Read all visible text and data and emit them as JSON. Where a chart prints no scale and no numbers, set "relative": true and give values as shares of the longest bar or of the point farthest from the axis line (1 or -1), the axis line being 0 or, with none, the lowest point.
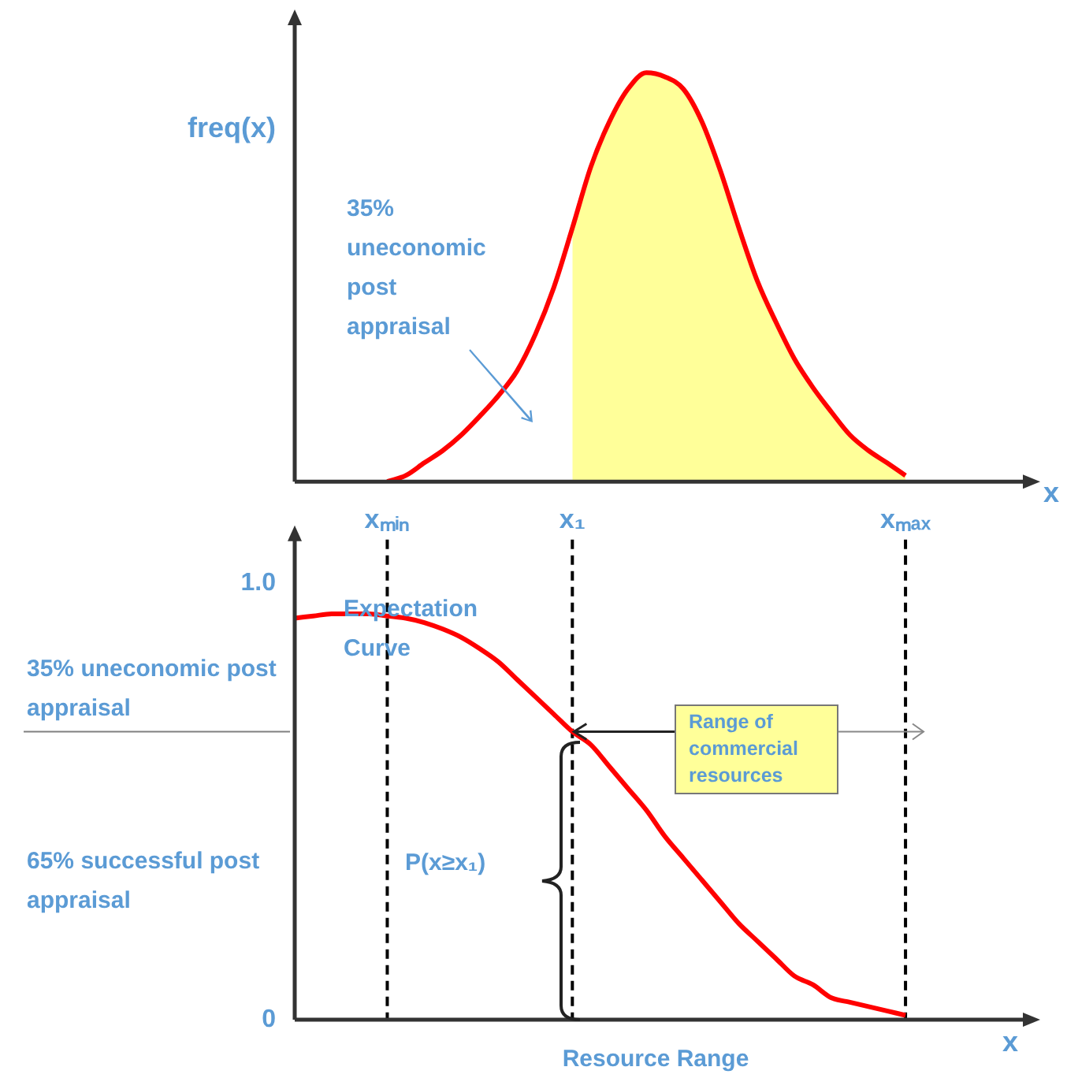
{
  "chart_data": [
    {
      "type": "line",
      "relative": true,
      "ylabel": "freq(x)",
      "xlabel": "x",
      "grid": false,
      "legend": false,
      "marker": "none",
      "line_style": "solid",
      "categories": [
        null,
        null,
        null,
        null,
        null,
        null,
        null,
        null,
        null,
        null,
        null,
        null,
        null,
        null,
        null,
        null,
        null,
        null,
        null,
        null,
        null,
        null,
        null,
        null,
        null,
        null,
        null,
        null,
        null,
        null,
        null,
        null,
        null,
        null,
        null,
        null,
        null,
        null,
        null,
        null
      ],
      "series": [
        {
          "color": "#ff0000",
          "values": [
            null,
            null,
            null,
            null,
            null,
            0,
            0.015,
            0.046,
            0.076,
            0.114,
            0.16,
            0.21,
            0.27,
            0.36,
            0.475,
            0.62,
            0.77,
            0.88,
            0.96,
            1,
            0.99,
            0.96,
            0.88,
            0.76,
            0.62,
            0.49,
            0.39,
            0.3,
            0.23,
            0.17,
            0.114,
            0.076,
            0.046,
            0.015,
            null,
            null,
            null,
            null,
            null,
            null
          ]
        },
        {
          "type": "area",
          "color": "#ffff99",
          "values": [
            null,
            null,
            null,
            null,
            null,
            null,
            null,
            null,
            null,
            null,
            null,
            null,
            null,
            null,
            null,
            0.62,
            0.77,
            0.88,
            0.96,
            1,
            0.99,
            0.96,
            0.88,
            0.76,
            0.62,
            0.49,
            0.39,
            0.3,
            0.23,
            0.17,
            0.114,
            0.076,
            0.046,
            0.015,
            null,
            null,
            null,
            null,
            null,
            null
          ]
        }
      ],
      "annotations": [
        "35% uneconomic post appraisal"
      ]
    },
    {
      "type": "line",
      "xlabel": "Resource Range",
      "grid": false,
      "legend": false,
      "marker": "none",
      "line_style": "solid",
      "categories": [
        null,
        null,
        null,
        null,
        null,
        "xₘᵢₙ",
        null,
        null,
        null,
        null,
        null,
        null,
        null,
        null,
        null,
        "x₁",
        null,
        null,
        null,
        null,
        null,
        null,
        null,
        null,
        null,
        null,
        null,
        null,
        null,
        null,
        null,
        null,
        null,
        "xₘₐₓ",
        null,
        null,
        null,
        null,
        null,
        null
      ],
      "ylim": [
        0,
        1.1
      ],
      "yticks": [
        0,
        {
          "value": 1,
          "label": "1.0"
        }
      ],
      "series": [
        {
          "color": "#ff0000",
          "values": [
            0.92,
            0.925,
            0.93,
            0.93,
            0.93,
            0.925,
            0.92,
            0.91,
            0.895,
            0.876,
            0.85,
            0.82,
            0.78,
            0.74,
            0.7,
            0.66,
            0.63,
            0.58,
            0.53,
            0.48,
            0.42,
            0.37,
            0.32,
            0.27,
            0.22,
            0.18,
            0.14,
            0.1,
            0.08,
            0.05,
            0.04,
            0.03,
            0.02,
            0.01,
            null,
            null,
            null,
            null,
            null,
            null
          ]
        }
      ],
      "ref_lines": [
        {
          "axis": "x",
          "value": "xₘᵢₙ",
          "color": "#000000",
          "line_style": "dashed"
        },
        {
          "axis": "x",
          "value": "x₁",
          "color": "#000000",
          "line_style": "dashed"
        },
        {
          "axis": "x",
          "value": "xₘₐₓ",
          "color": "#000000",
          "line_style": "dashed"
        },
        {
          "axis": "y",
          "value": 0.66,
          "color": "#808080",
          "line_style": "solid"
        }
      ],
      "annotations": [
        "x",
        "Expectation Curve",
        "35% uneconomic post appraisal",
        "65% successful post appraisal",
        "P(x≥x₁)",
        {
          "text": "Range of commercial resources",
          "x": "x₁",
          "y": 0.66
        }
      ]
    }
  ]
}
